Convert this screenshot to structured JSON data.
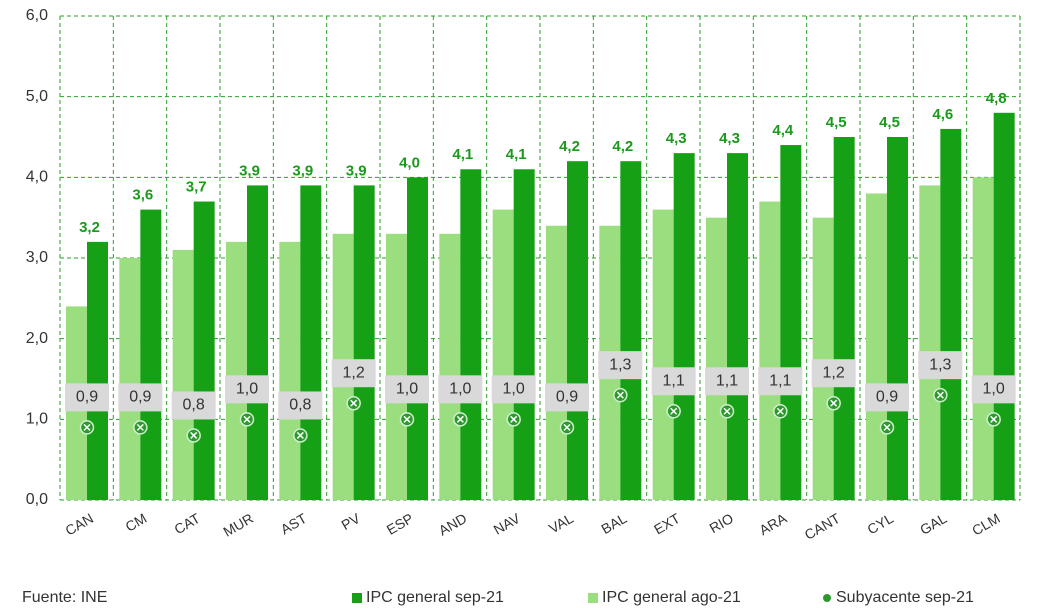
{
  "chart_data": {
    "type": "bar",
    "categories": [
      "CAN",
      "CM",
      "CAT",
      "MUR",
      "AST",
      "PV",
      "ESP",
      "AND",
      "NAV",
      "VAL",
      "BAL",
      "EXT",
      "RIO",
      "ARA",
      "CANT",
      "CYL",
      "GAL",
      "CLM"
    ],
    "series": [
      {
        "name": "IPC general sep-21",
        "color": "#15a015",
        "kind": "bar",
        "values": [
          3.2,
          3.6,
          3.7,
          3.9,
          3.9,
          3.9,
          4.0,
          4.1,
          4.1,
          4.2,
          4.2,
          4.3,
          4.3,
          4.4,
          4.5,
          4.5,
          4.6,
          4.8
        ],
        "value_labels": [
          "3,2",
          "3,6",
          "3,7",
          "3,9",
          "3,9",
          "3,9",
          "4,0",
          "4,1",
          "4,1",
          "4,2",
          "4,2",
          "4,3",
          "4,3",
          "4,4",
          "4,5",
          "4,5",
          "4,6",
          "4,8"
        ]
      },
      {
        "name": "IPC general ago-21",
        "color": "#9ade80",
        "kind": "bar",
        "values": [
          2.4,
          3.0,
          3.1,
          3.2,
          3.2,
          3.3,
          3.3,
          3.3,
          3.6,
          3.4,
          3.4,
          3.6,
          3.5,
          3.7,
          3.5,
          3.8,
          3.9,
          4.0
        ]
      },
      {
        "name": "Subyacente sep-21",
        "color": "#2a9a2a",
        "kind": "marker",
        "values": [
          0.9,
          0.9,
          0.8,
          1.0,
          0.8,
          1.2,
          1.0,
          1.0,
          1.0,
          0.9,
          1.3,
          1.1,
          1.1,
          1.1,
          1.2,
          0.9,
          1.3,
          1.0
        ],
        "value_labels": [
          "0,9",
          "0,9",
          "0,8",
          "1,0",
          "0,8",
          "1,2",
          "1,0",
          "1,0",
          "1,0",
          "0,9",
          "1,3",
          "1,1",
          "1,1",
          "1,1",
          "1,2",
          "0,9",
          "1,3",
          "1,0"
        ]
      }
    ],
    "ylim": [
      0,
      6
    ],
    "yticks": [
      {
        "value": 0,
        "label": "0,0"
      },
      {
        "value": 1,
        "label": "1,0"
      },
      {
        "value": 2,
        "label": "2,0"
      },
      {
        "value": 3,
        "label": "3,0"
      },
      {
        "value": 4,
        "label": "4,0"
      },
      {
        "value": 5,
        "label": "5,0"
      },
      {
        "value": 6,
        "label": "6,0"
      }
    ],
    "grid": true,
    "source": "Fuente: INE"
  }
}
